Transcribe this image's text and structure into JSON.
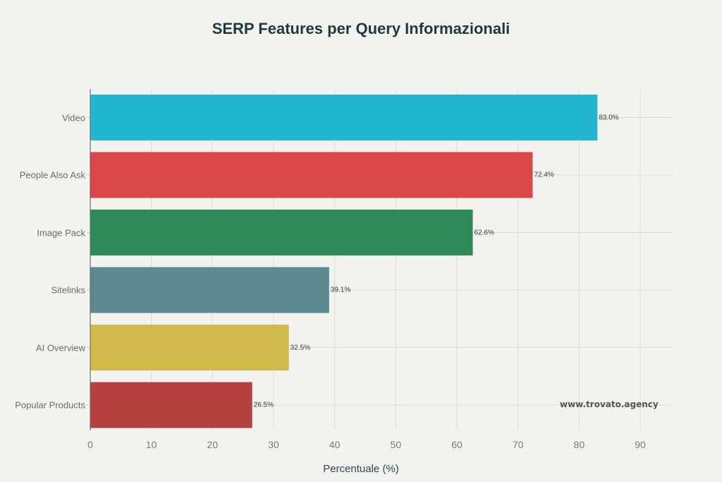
{
  "title": "SERP Features per Query Informazionali",
  "watermark": "www.trovato.agency",
  "chart_data": {
    "type": "bar",
    "orientation": "horizontal",
    "title": "SERP Features per Query Informazionali",
    "xlabel": "Percentuale (%)",
    "ylabel": "",
    "categories": [
      "Video",
      "People Also Ask",
      "Image Pack",
      "Sitelinks",
      "AI Overview",
      "Popular Products"
    ],
    "values": [
      83.0,
      72.4,
      62.6,
      39.1,
      32.5,
      26.5
    ],
    "value_labels": [
      "83.0%",
      "72.4%",
      "62.6%",
      "39.1%",
      "32.5%",
      "26.5%"
    ],
    "colors": [
      "#21b8cf",
      "#db4646",
      "#2e8b57",
      "#5d8a91",
      "#d2b94b",
      "#b5403d"
    ],
    "xlim": [
      0,
      95
    ],
    "xticks": [
      0,
      10,
      20,
      30,
      40,
      50,
      60,
      70,
      80,
      90
    ],
    "grid": true,
    "legend": null
  }
}
